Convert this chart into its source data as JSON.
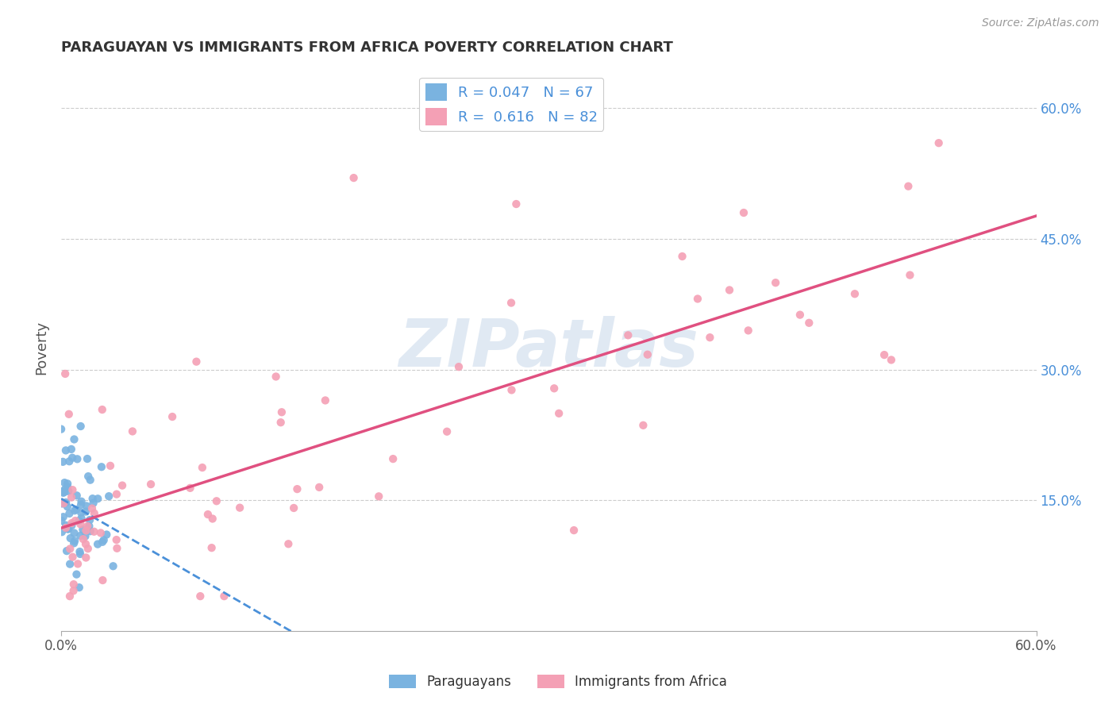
{
  "title": "PARAGUAYAN VS IMMIGRANTS FROM AFRICA POVERTY CORRELATION CHART",
  "source": "Source: ZipAtlas.com",
  "ylabel": "Poverty",
  "xlim": [
    0.0,
    0.6
  ],
  "ylim": [
    0.0,
    0.65
  ],
  "xtick_labels": [
    "0.0%",
    "60.0%"
  ],
  "ytick_labels": [
    "15.0%",
    "30.0%",
    "45.0%",
    "60.0%"
  ],
  "ytick_values": [
    0.15,
    0.3,
    0.45,
    0.6
  ],
  "legend_labels": [
    "Paraguayans",
    "Immigrants from Africa"
  ],
  "paraguayan_color": "#7ab3e0",
  "africa_color": "#f4a0b5",
  "paraguayan_line_color": "#4a90d9",
  "africa_line_color": "#e05080",
  "r_paraguayan": 0.047,
  "n_paraguayan": 67,
  "r_africa": 0.616,
  "n_africa": 82,
  "watermark": "ZIPatlas",
  "background_color": "#ffffff",
  "grid_color": "#cccccc"
}
